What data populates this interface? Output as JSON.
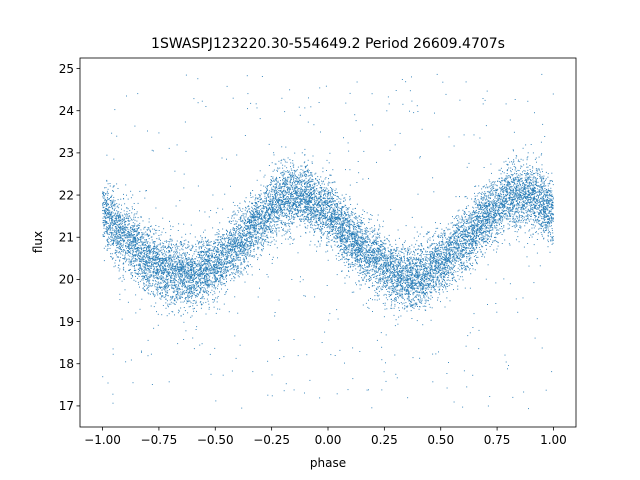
{
  "chart_data": {
    "type": "scatter",
    "title": "1SWASPJ123220.30-554649.2 Period 26609.4707s",
    "xlabel": "phase",
    "ylabel": "flux",
    "xlim": [
      -1.1,
      1.1
    ],
    "ylim": [
      16.5,
      25.25
    ],
    "xticks": [
      -1.0,
      -0.75,
      -0.5,
      -0.25,
      0.0,
      0.25,
      0.5,
      0.75,
      1.0
    ],
    "xtick_labels": [
      "−1.00",
      "−0.75",
      "−0.50",
      "−0.25",
      "0.00",
      "0.25",
      "0.50",
      "0.75",
      "1.00"
    ],
    "yticks": [
      17,
      18,
      19,
      20,
      21,
      22,
      23,
      24,
      25
    ],
    "ytick_labels": [
      "17",
      "18",
      "19",
      "20",
      "21",
      "22",
      "23",
      "24",
      "25"
    ],
    "grid": false,
    "marker_color": "#1f77b4",
    "series": [
      {
        "trend_knots": {
          "phase": [
            -1.0,
            -0.9,
            -0.8,
            -0.7,
            -0.6,
            -0.5,
            -0.4,
            -0.3,
            -0.2,
            -0.1,
            0.0,
            0.1,
            0.2,
            0.3,
            0.4,
            0.5,
            0.6,
            0.7,
            0.8,
            0.9,
            1.0
          ],
          "flux": [
            21.55,
            21.0,
            20.5,
            20.15,
            20.1,
            20.35,
            20.8,
            21.4,
            21.95,
            21.95,
            21.6,
            21.0,
            20.5,
            20.1,
            20.05,
            20.4,
            20.9,
            21.5,
            21.95,
            22.0,
            21.6
          ]
        },
        "point_count": 14000,
        "scatter_sigma": 0.38,
        "outlier_fraction": 0.03,
        "outlier_range": [
          16.9,
          24.9
        ]
      }
    ]
  }
}
